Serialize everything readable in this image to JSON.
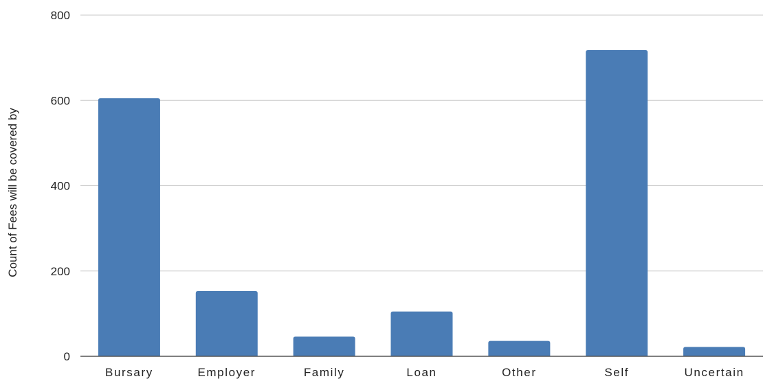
{
  "chart_data": {
    "type": "bar",
    "title": "",
    "xlabel": "",
    "ylabel": "Count of Fees will be covered by",
    "categories": [
      "Bursary",
      "Employer",
      "Family",
      "Loan",
      "Other",
      "Self",
      "Uncertain"
    ],
    "values": [
      605,
      153,
      46,
      105,
      36,
      718,
      22
    ],
    "ylim": [
      0,
      800
    ],
    "yticks": [
      0,
      200,
      400,
      600,
      800
    ],
    "ytick_labels": [
      "0",
      "200",
      "400",
      "600",
      "800"
    ],
    "grid": true,
    "legend": "none",
    "colors": {
      "bar": "#4a7cb5",
      "grid": "#c8c8c8",
      "axis": "#555555"
    }
  }
}
